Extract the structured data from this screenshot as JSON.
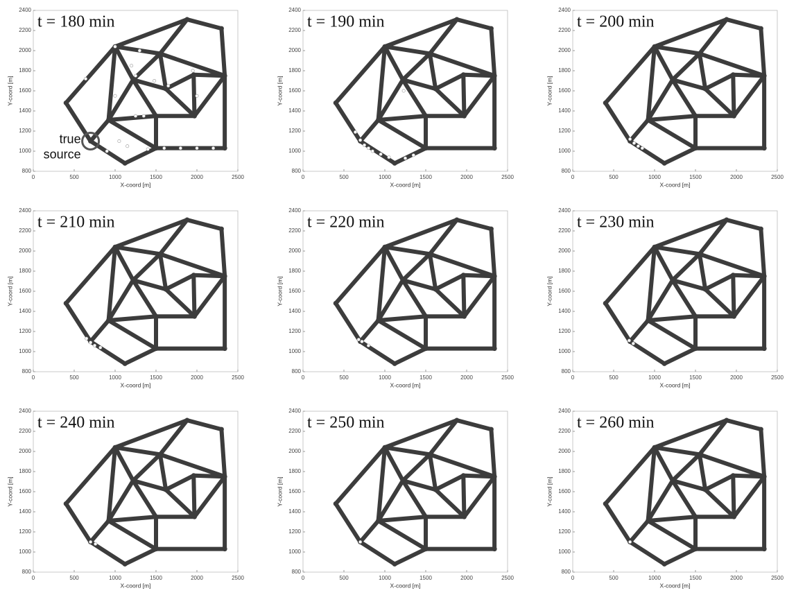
{
  "network": {
    "x": [
      400,
      1000,
      1880,
      2300,
      2340,
      2340,
      1500,
      1120,
      700,
      920,
      1500,
      1970,
      1550,
      1220,
      1620,
      1960
    ],
    "y": [
      1480,
      2040,
      2310,
      2220,
      1750,
      1030,
      1030,
      880,
      1100,
      1310,
      1350,
      1350,
      1970,
      1710,
      1620,
      1760
    ],
    "edges": [
      [
        0,
        1
      ],
      [
        1,
        2
      ],
      [
        2,
        3
      ],
      [
        3,
        4
      ],
      [
        4,
        5
      ],
      [
        5,
        6
      ],
      [
        6,
        7
      ],
      [
        7,
        8
      ],
      [
        0,
        8
      ],
      [
        8,
        9
      ],
      [
        9,
        6
      ],
      [
        10,
        6
      ],
      [
        9,
        10
      ],
      [
        10,
        11
      ],
      [
        11,
        4
      ],
      [
        11,
        14
      ],
      [
        9,
        1
      ],
      [
        9,
        13
      ],
      [
        13,
        10
      ],
      [
        1,
        13
      ],
      [
        1,
        12
      ],
      [
        12,
        2
      ],
      [
        12,
        4
      ],
      [
        12,
        13
      ],
      [
        12,
        14
      ],
      [
        13,
        14
      ],
      [
        14,
        15
      ],
      [
        15,
        4
      ],
      [
        15,
        11
      ]
    ]
  },
  "chart_data": [
    {
      "type": "network",
      "title": "t = 180 min",
      "xlabel": "X-coord [m]",
      "ylabel": "Y-coord [m]",
      "xlim": [
        0,
        2500
      ],
      "ylim": [
        800,
        2400
      ],
      "xticks": [
        0,
        500,
        1000,
        1500,
        2000,
        2500
      ],
      "yticks": [
        800,
        1000,
        1200,
        1400,
        1600,
        1800,
        2000,
        2200,
        2400
      ],
      "x": [
        1000,
        1300,
        640,
        1200,
        1480,
        1650,
        1950,
        1250,
        1350,
        2000,
        1050,
        1150,
        1600,
        1800,
        2000,
        2200,
        1400,
        900,
        1000,
        1250
      ],
      "y": [
        2040,
        2000,
        1720,
        1850,
        1700,
        1650,
        1800,
        1350,
        1350,
        1550,
        1100,
        1050,
        1030,
        1030,
        1030,
        1030,
        1020,
        1000,
        1550,
        1750
      ],
      "source": {
        "x": 700,
        "y": 1100,
        "label": [
          "true",
          "source"
        ]
      }
    },
    {
      "type": "network",
      "title": "t = 190 min",
      "xlabel": "X-coord [m]",
      "ylabel": "Y-coord [m]",
      "xlim": [
        0,
        2500
      ],
      "ylim": [
        800,
        2400
      ],
      "xticks": [
        0,
        500,
        1000,
        1500,
        2000,
        2500
      ],
      "yticks": [
        800,
        1000,
        1200,
        1400,
        1600,
        1800,
        2000,
        2200,
        2400
      ],
      "x": [
        640,
        700,
        750,
        800,
        850,
        950,
        1050,
        1250,
        1350,
        1230
      ],
      "y": [
        1190,
        1110,
        1060,
        1030,
        1000,
        970,
        940,
        930,
        960,
        1600
      ]
    },
    {
      "type": "network",
      "title": "t = 200 min",
      "xlabel": "X-coord [m]",
      "ylabel": "Y-coord [m]",
      "xlim": [
        0,
        2500
      ],
      "ylim": [
        800,
        2400
      ],
      "xticks": [
        0,
        500,
        1000,
        1500,
        2000,
        2500
      ],
      "yticks": [
        800,
        1000,
        1200,
        1400,
        1600,
        1800,
        2000,
        2200,
        2400
      ],
      "x": [
        700,
        750,
        800,
        850
      ],
      "y": [
        1120,
        1080,
        1050,
        1030
      ]
    },
    {
      "type": "network",
      "title": "t = 210 min",
      "xlabel": "X-coord [m]",
      "ylabel": "Y-coord [m]",
      "xlim": [
        0,
        2500
      ],
      "ylim": [
        800,
        2400
      ],
      "xticks": [
        0,
        500,
        1000,
        1500,
        2000,
        2500
      ],
      "yticks": [
        800,
        1000,
        1200,
        1400,
        1600,
        1800,
        2000,
        2200,
        2400
      ],
      "x": [
        650,
        700,
        750,
        820
      ],
      "y": [
        1130,
        1090,
        1060,
        1040
      ]
    },
    {
      "type": "network",
      "title": "t = 220 min",
      "xlabel": "X-coord [m]",
      "ylabel": "Y-coord [m]",
      "xlim": [
        0,
        2500
      ],
      "ylim": [
        800,
        2400
      ],
      "xticks": [
        0,
        500,
        1000,
        1500,
        2000,
        2500
      ],
      "yticks": [
        800,
        1000,
        1200,
        1400,
        1600,
        1800,
        2000,
        2200,
        2400
      ],
      "x": [
        680,
        720,
        800
      ],
      "y": [
        1120,
        1100,
        1060
      ]
    },
    {
      "type": "network",
      "title": "t = 230 min",
      "xlabel": "X-coord [m]",
      "ylabel": "Y-coord [m]",
      "xlim": [
        0,
        2500
      ],
      "ylim": [
        800,
        2400
      ],
      "xticks": [
        0,
        500,
        1000,
        1500,
        2000,
        2500
      ],
      "yticks": [
        800,
        1000,
        1200,
        1400,
        1600,
        1800,
        2000,
        2200,
        2400
      ],
      "x": [
        690,
        740
      ],
      "y": [
        1110,
        1080
      ]
    },
    {
      "type": "network",
      "title": "t = 240 min",
      "xlabel": "X-coord [m]",
      "ylabel": "Y-coord [m]",
      "xlim": [
        0,
        2500
      ],
      "ylim": [
        800,
        2400
      ],
      "xticks": [
        0,
        500,
        1000,
        1500,
        2000,
        2500
      ],
      "yticks": [
        800,
        1000,
        1200,
        1400,
        1600,
        1800,
        2000,
        2200,
        2400
      ],
      "x": [
        700,
        760
      ],
      "y": [
        1100,
        1080
      ]
    },
    {
      "type": "network",
      "title": "t = 250 min",
      "xlabel": "X-coord [m]",
      "ylabel": "Y-coord [m]",
      "xlim": [
        0,
        2500
      ],
      "ylim": [
        800,
        2400
      ],
      "xticks": [
        0,
        500,
        1000,
        1500,
        2000,
        2500
      ],
      "yticks": [
        800,
        1000,
        1200,
        1400,
        1600,
        1800,
        2000,
        2200,
        2400
      ],
      "x": [
        700
      ],
      "y": [
        1100
      ]
    },
    {
      "type": "network",
      "title": "t = 260 min",
      "xlabel": "X-coord [m]",
      "ylabel": "Y-coord [m]",
      "xlim": [
        0,
        2500
      ],
      "ylim": [
        800,
        2400
      ],
      "xticks": [
        0,
        500,
        1000,
        1500,
        2000,
        2500
      ],
      "yticks": [
        800,
        1000,
        1200,
        1400,
        1600,
        1800,
        2000,
        2200,
        2400
      ],
      "x": [
        700
      ],
      "y": [
        1100
      ]
    }
  ]
}
